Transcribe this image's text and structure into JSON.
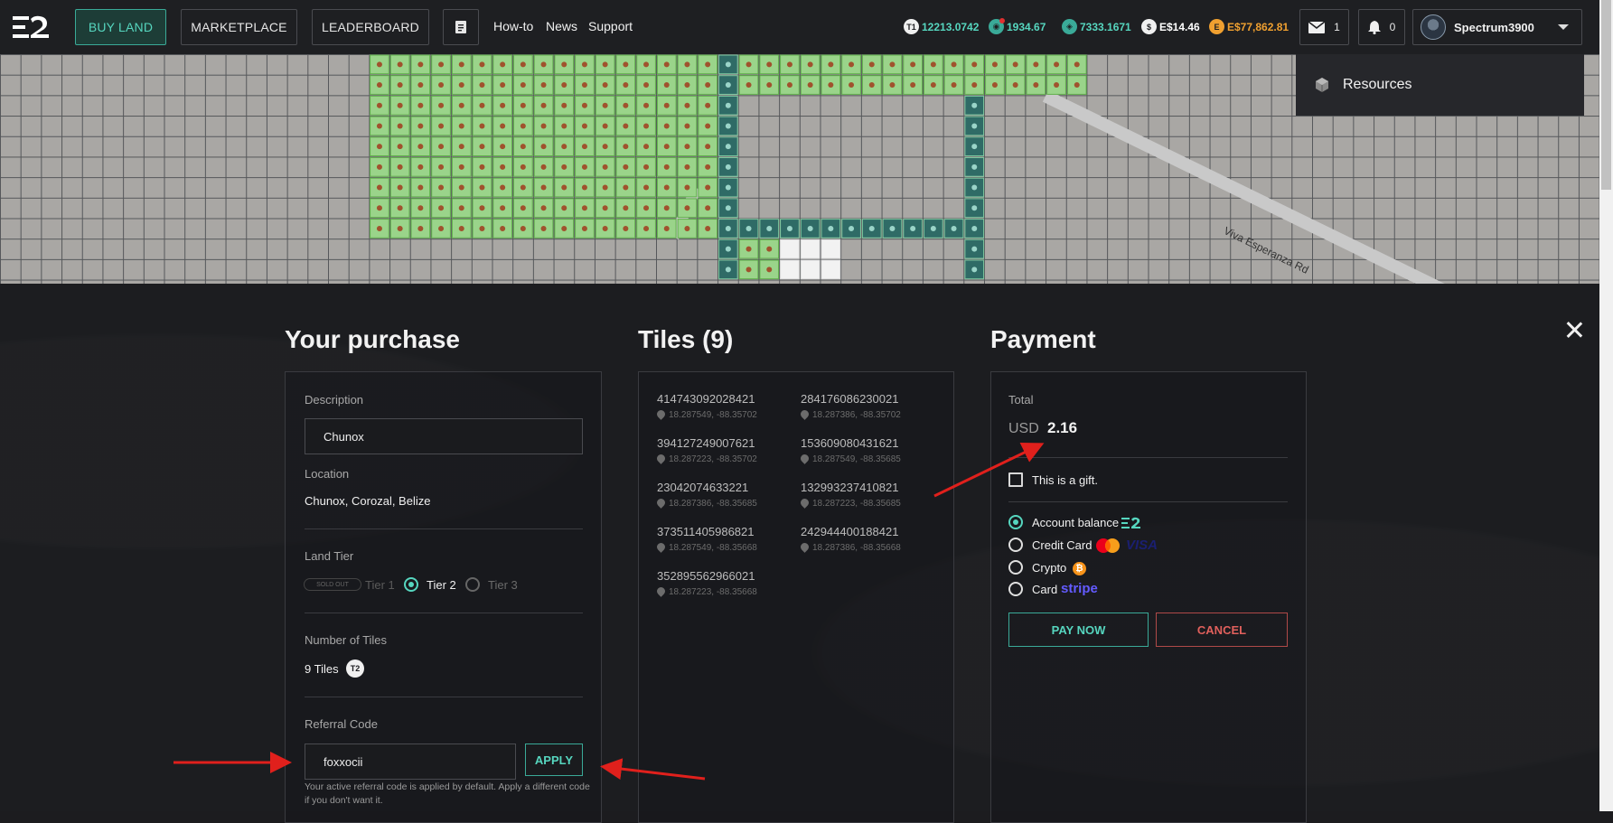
{
  "nav": {
    "buy_land": "BUY LAND",
    "marketplace": "MARKETPLACE",
    "leaderboard": "LEADERBOARD",
    "how_to": "How-to",
    "news": "News",
    "support": "Support",
    "balances": [
      {
        "icon": "t1-token-icon",
        "value": "12213.0742",
        "color": "#56d6bf"
      },
      {
        "icon": "globe-token-icon",
        "value": "1934.67",
        "color": "#56d6bf"
      },
      {
        "icon": "essence-token-icon",
        "value": "7333.1671",
        "color": "#56d6bf"
      },
      {
        "icon": "dollar-icon",
        "value": "E$14.46",
        "color": "#ffffff"
      },
      {
        "icon": "ecoin-icon",
        "value": "E$77,862.81",
        "color": "#f0a030"
      }
    ],
    "messages_count": "1",
    "notifications_count": "0",
    "username": "Spectrum3900",
    "dropdown_item": "Resources"
  },
  "map": {
    "road_label": "Viva Esperanza Rd"
  },
  "purchase": {
    "title": "Your purchase",
    "description_label": "Description",
    "description_value": "Chunox",
    "location_label": "Location",
    "location_value": "Chunox, Corozal, Belize",
    "tier_label": "Land Tier",
    "sold_out": "SOLD OUT",
    "tier1": "Tier 1",
    "tier2": "Tier 2",
    "tier3": "Tier 3",
    "tiles_label": "Number of Tiles",
    "tiles_value": "9 Tiles",
    "tier_badge": "T2",
    "referral_label": "Referral Code",
    "referral_value": "foxxocii",
    "apply": "APPLY",
    "hint": "Your active referral code is applied by default. Apply a different code if you don't want it."
  },
  "tiles": {
    "title": "Tiles (9)",
    "items": [
      {
        "id": "414743092028421",
        "coord": "18.287549, -88.35702"
      },
      {
        "id": "284176086230021",
        "coord": "18.287386, -88.35702"
      },
      {
        "id": "394127249007621",
        "coord": "18.287223, -88.35702"
      },
      {
        "id": "153609080431621",
        "coord": "18.287549, -88.35685"
      },
      {
        "id": "23042074633221",
        "coord": "18.287386, -88.35685"
      },
      {
        "id": "132993237410821",
        "coord": "18.287223, -88.35685"
      },
      {
        "id": "373511405986821",
        "coord": "18.287549, -88.35668"
      },
      {
        "id": "242944400188421",
        "coord": "18.287386, -88.35668"
      },
      {
        "id": "352895562966021",
        "coord": "18.287223, -88.35668"
      }
    ]
  },
  "payment": {
    "title": "Payment",
    "total_label": "Total",
    "currency": "USD",
    "amount": "2.16",
    "gift": "This is a gift.",
    "account_balance": "Account balance",
    "credit_card": "Credit Card",
    "visa": "VISA",
    "crypto": "Crypto",
    "card": "Card",
    "stripe": "stripe",
    "pay_now": "PAY NOW",
    "cancel": "CANCEL"
  },
  "colors": {
    "accent": "#56d6bf",
    "cancel": "#e0605c",
    "annotation_arrow": "#e0201c"
  }
}
